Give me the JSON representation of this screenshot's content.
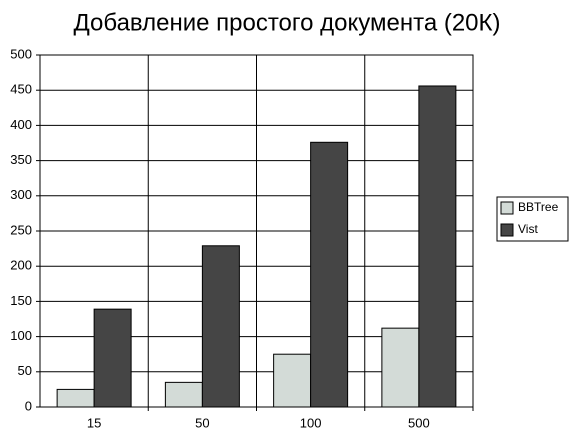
{
  "chart_data": {
    "type": "bar",
    "title": "Добавление простого документа (20К)",
    "categories": [
      "15",
      "50",
      "100",
      "500"
    ],
    "series": [
      {
        "name": "BBTree",
        "color": "#d3dbd7",
        "values": [
          25,
          35,
          75,
          112
        ]
      },
      {
        "name": "Vist",
        "color": "#454545",
        "values": [
          139,
          229,
          376,
          456
        ]
      }
    ],
    "ylim": [
      0,
      500
    ],
    "yticks": [
      0,
      50,
      100,
      150,
      200,
      250,
      300,
      350,
      400,
      450,
      500
    ],
    "grid": true,
    "legend": "right"
  }
}
